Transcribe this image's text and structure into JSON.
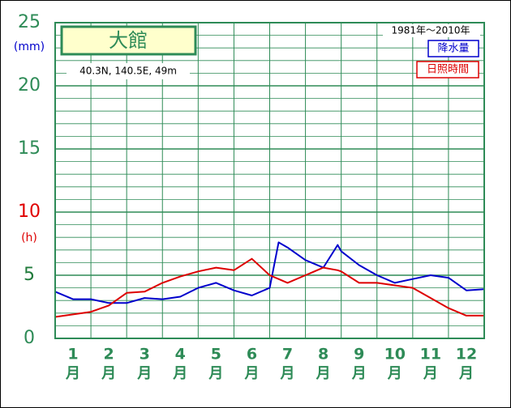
{
  "chart_data": {
    "type": "line",
    "title": "大館",
    "subtitle": "40.3N, 140.5E, 49m",
    "period": "1981年～2010年",
    "y_unit_left": "(mm)",
    "y_unit_right": "(h)",
    "x_unit": "月",
    "categories": [
      "1",
      "2",
      "3",
      "4",
      "5",
      "6",
      "7",
      "8",
      "9",
      "10",
      "11",
      "12"
    ],
    "xlim": [
      0,
      12
    ],
    "ylim": [
      0,
      25
    ],
    "yticks": [
      0,
      5,
      10,
      15,
      20,
      25
    ],
    "ytick_colors": [
      "#2e8b57",
      "#1f7a3a",
      "#e00000",
      "#2e8b57",
      "#2e8b57",
      "#2e8b57"
    ],
    "grid": true,
    "x": [
      0,
      0.5,
      1,
      1.5,
      2,
      2.5,
      3,
      3.5,
      4,
      4.5,
      5,
      5.5,
      6,
      6.25,
      6.5,
      7,
      7.5,
      7.9,
      8,
      8.5,
      9,
      9.5,
      10,
      10.5,
      11,
      11.5,
      12
    ],
    "series": [
      {
        "name": "降水量",
        "color": "#0000cc",
        "values": [
          3.7,
          3.1,
          3.1,
          2.8,
          2.8,
          3.2,
          3.1,
          3.3,
          4.0,
          4.4,
          3.8,
          3.4,
          4.0,
          7.6,
          7.2,
          6.2,
          5.6,
          7.4,
          6.9,
          5.8,
          5.0,
          4.4,
          4.7,
          5.0,
          4.8,
          3.8,
          3.9
        ]
      },
      {
        "name": "日照時間",
        "color": "#dd0000",
        "values": [
          1.7,
          1.9,
          2.1,
          2.6,
          3.6,
          3.7,
          4.4,
          4.9,
          5.3,
          5.6,
          5.4,
          6.3,
          5.0,
          4.7,
          4.4,
          5.0,
          5.6,
          5.4,
          5.3,
          4.4,
          4.4,
          4.2,
          4.0,
          3.2,
          2.4,
          1.8,
          1.8
        ]
      }
    ]
  }
}
